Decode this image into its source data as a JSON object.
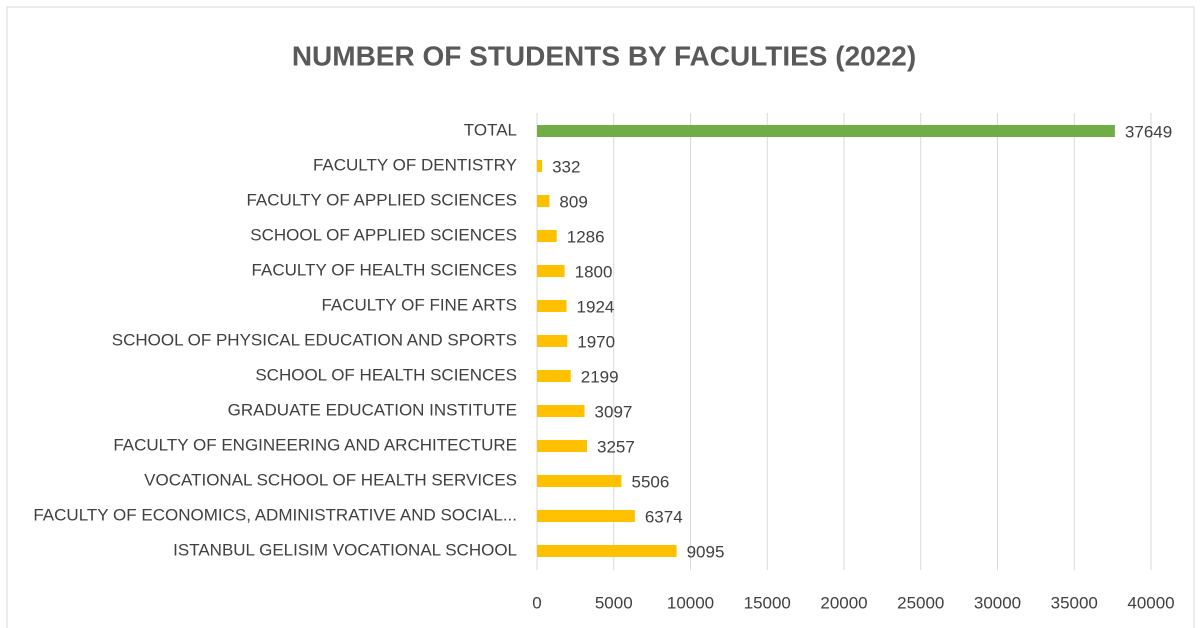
{
  "chart_data": {
    "type": "hbar",
    "title": "NUMBER OF STUDENTS BY FACULTIES (2022)",
    "categories": [
      "TOTAL",
      "FACULTY OF DENTISTRY",
      "FACULTY OF APPLIED SCIENCES",
      "SCHOOL OF APPLIED SCIENCES",
      "FACULTY OF HEALTH SCIENCES",
      "FACULTY OF FINE ARTS",
      "SCHOOL OF PHYSICAL EDUCATION AND SPORTS",
      "SCHOOL OF HEALTH SCIENCES",
      "GRADUATE EDUCATION INSTITUTE",
      "FACULTY OF ENGINEERING AND ARCHITECTURE",
      "VOCATIONAL SCHOOL OF HEALTH SERVICES",
      "FACULTY OF ECONOMICS, ADMINISTRATIVE AND SOCIAL...",
      "ISTANBUL GELISIM VOCATIONAL SCHOOL"
    ],
    "values": [
      37649,
      332,
      809,
      1286,
      1800,
      1924,
      1970,
      2199,
      3097,
      3257,
      5506,
      6374,
      9095
    ],
    "colors": [
      "#70ad47",
      "#ffc000",
      "#ffc000",
      "#ffc000",
      "#ffc000",
      "#ffc000",
      "#ffc000",
      "#ffc000",
      "#ffc000",
      "#ffc000",
      "#ffc000",
      "#ffc000",
      "#ffc000"
    ],
    "xlim": [
      0,
      40000
    ],
    "xticks": [
      0,
      5000,
      10000,
      15000,
      20000,
      25000,
      30000,
      35000,
      40000
    ],
    "grid": true
  }
}
